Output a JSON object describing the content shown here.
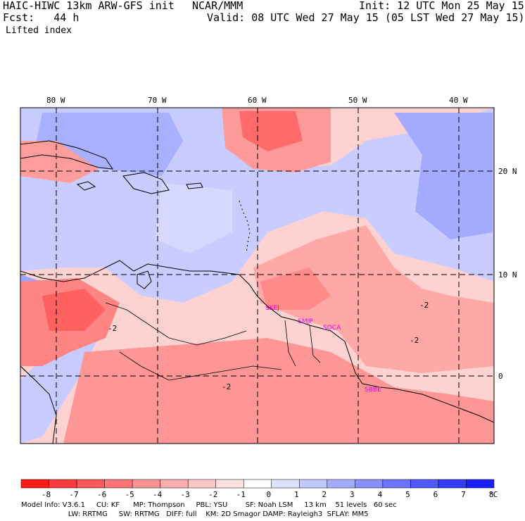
{
  "header": {
    "model_line": "HAIC-HIWC 13km ARW-GFS init",
    "institution": "NCAR/MMM",
    "init": "Init: 12 UTC Mon 25 May 15",
    "fcst": "Fcst:   44 h",
    "valid": "Valid: 08 UTC Wed 27 May 15 (05 LST Wed 27 May 15)",
    "field": "Lifted index"
  },
  "map": {
    "lon_labels": [
      "80 W",
      "70 W",
      "60 W",
      "50 W",
      "40 W"
    ],
    "lat_labels": [
      "20 N",
      "10 N",
      "0"
    ],
    "contour_labels": [
      "-2",
      "-2",
      "-2",
      "-2"
    ],
    "stations": [
      "SKEJ",
      "SMJP",
      "SOCA",
      "SBBE"
    ]
  },
  "colorbar": {
    "ticks": [
      "-8",
      "-7",
      "-6",
      "-5",
      "-4",
      "-3",
      "-2",
      "-1",
      "0",
      "1",
      "2",
      "3",
      "4",
      "5",
      "6",
      "7",
      "8"
    ],
    "unit": "°C",
    "colors": [
      "#ff1a1a",
      "#ff3a3a",
      "#ff5858",
      "#ff7474",
      "#ff9292",
      "#ffadad",
      "#ffc6c6",
      "#ffe0e0",
      "#ffffff",
      "#dfe2ff",
      "#c2c8ff",
      "#a4acff",
      "#8890ff",
      "#6c74ff",
      "#5058ff",
      "#343cff",
      "#1a20ff"
    ]
  },
  "footer": {
    "line1": "Model Info: V3.6.1     CU: KF      MP: Thompson     PBL: YSU        SF: Noah LSM     13 km    51 levels   60 sec",
    "line2": "                     LW: RRTMG     SW: RRTMG   DIFF: full    KM: 2D Smagor DAMP: Rayleigh3  SFLAY: MM5"
  }
}
